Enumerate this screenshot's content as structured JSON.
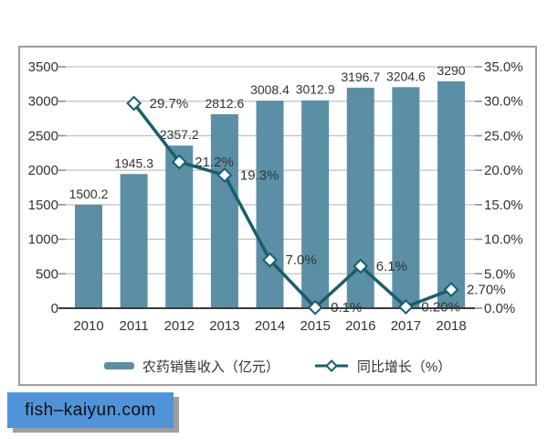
{
  "watermark": {
    "text": "fish–kaiyun.com",
    "bg_color": "#4f93d9",
    "shadow_color": "#9e9e9e"
  },
  "legend": {
    "items": [
      {
        "label": "农药销售收入（亿元）",
        "swatch": "bar"
      },
      {
        "label": "同比增长（%）",
        "swatch": "line-open-diamond"
      }
    ]
  },
  "colors": {
    "bar": "#5b8fa5",
    "line": "#175f6b",
    "marker_fill": "#ffffff",
    "gridline": "#b3b3b3",
    "axis_line": "#3a3a3a",
    "tick": "#8a8a8a",
    "text": "#333333",
    "panel_border": "#9e9e9e"
  },
  "chart_data": {
    "type": "bar",
    "title": "",
    "categories": [
      "2010",
      "2011",
      "2012",
      "2013",
      "2014",
      "2015",
      "2016",
      "2017",
      "2018"
    ],
    "series": [
      {
        "name": "农药销售收入（亿元）",
        "type": "bar",
        "axis": "left",
        "values": [
          1500.2,
          1945.3,
          2357.2,
          2812.6,
          3008.4,
          3012.9,
          3196.7,
          3204.6,
          3290
        ],
        "value_labels": [
          "1500.2",
          "1945.3",
          "2357.2",
          "2812.6",
          "3008.4",
          "3012.9",
          "3196.7",
          "3204.6",
          "3290"
        ]
      },
      {
        "name": "同比增长（%）",
        "type": "line",
        "axis": "right",
        "marker": "open-diamond",
        "values": [
          null,
          29.7,
          21.2,
          19.3,
          7.0,
          0.1,
          6.1,
          0.2,
          2.7
        ],
        "value_labels": [
          null,
          "29.7%",
          "21.2%",
          "19.3%",
          "7.0%",
          "0.1%",
          "6.1%",
          "0.20%",
          "2.70%"
        ]
      }
    ],
    "left_axis": {
      "min": 0,
      "max": 3500,
      "step": 500,
      "tick_labels_top_to_bottom": [
        "3500",
        "3000",
        "2500",
        "2000",
        "1500",
        "1000",
        "500",
        "0"
      ]
    },
    "right_axis": {
      "min": 0,
      "max": 35,
      "step": 5,
      "tick_labels_top_to_bottom": [
        "35.0%",
        "30.0%",
        "25.0%",
        "20.0%",
        "15.0%",
        "10.0%",
        "5.0%",
        "0.0%"
      ]
    },
    "grid": true,
    "legend_position": "bottom"
  }
}
